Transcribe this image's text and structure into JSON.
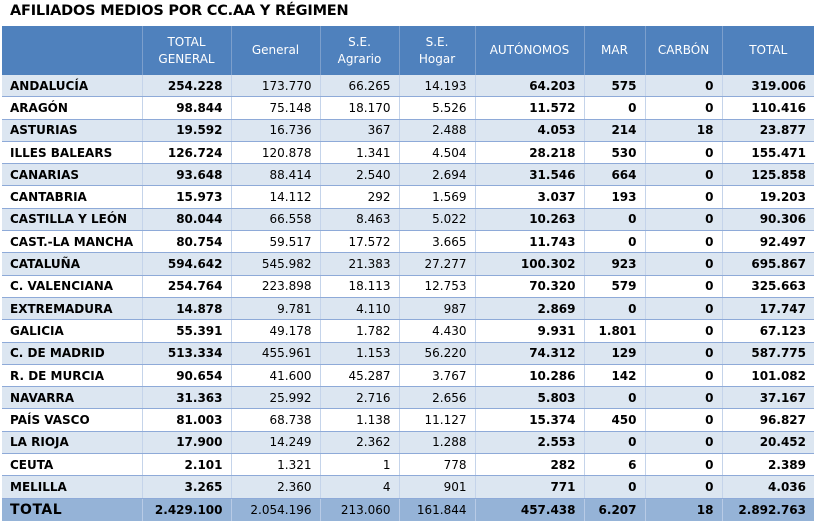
{
  "title": "AFILIADOS MEDIOS POR CC.AA Y RÉGIMEN",
  "headers": [
    [
      "TOTAL",
      "GENERAL"
    ],
    [
      "General"
    ],
    [
      "S.E.",
      "Agrario"
    ],
    [
      "S.E.",
      "Hogar"
    ],
    [
      "AUTÓNOMOS"
    ],
    [
      "MAR"
    ],
    [
      "CARBÓN"
    ],
    [
      "TOTAL"
    ]
  ],
  "rows": [
    {
      "name": "ANDALUCÍA",
      "cells": [
        "254.228",
        "173.770",
        "66.265",
        "14.193",
        "64.203",
        "575",
        "0",
        "319.006"
      ]
    },
    {
      "name": "ARAGÓN",
      "cells": [
        "98.844",
        "75.148",
        "18.170",
        "5.526",
        "11.572",
        "0",
        "0",
        "110.416"
      ]
    },
    {
      "name": "ASTURIAS",
      "cells": [
        "19.592",
        "16.736",
        "367",
        "2.488",
        "4.053",
        "214",
        "18",
        "23.877"
      ]
    },
    {
      "name": "ILLES BALEARS",
      "cells": [
        "126.724",
        "120.878",
        "1.341",
        "4.504",
        "28.218",
        "530",
        "0",
        "155.471"
      ]
    },
    {
      "name": "CANARIAS",
      "cells": [
        "93.648",
        "88.414",
        "2.540",
        "2.694",
        "31.546",
        "664",
        "0",
        "125.858"
      ]
    },
    {
      "name": "CANTABRIA",
      "cells": [
        "15.973",
        "14.112",
        "292",
        "1.569",
        "3.037",
        "193",
        "0",
        "19.203"
      ]
    },
    {
      "name": "CASTILLA Y LEÓN",
      "cells": [
        "80.044",
        "66.558",
        "8.463",
        "5.022",
        "10.263",
        "0",
        "0",
        "90.306"
      ]
    },
    {
      "name": "CAST.-LA MANCHA",
      "cells": [
        "80.754",
        "59.517",
        "17.572",
        "3.665",
        "11.743",
        "0",
        "0",
        "92.497"
      ]
    },
    {
      "name": "CATALUÑA",
      "cells": [
        "594.642",
        "545.982",
        "21.383",
        "27.277",
        "100.302",
        "923",
        "0",
        "695.867"
      ]
    },
    {
      "name": "C. VALENCIANA",
      "cells": [
        "254.764",
        "223.898",
        "18.113",
        "12.753",
        "70.320",
        "579",
        "0",
        "325.663"
      ]
    },
    {
      "name": "EXTREMADURA",
      "cells": [
        "14.878",
        "9.781",
        "4.110",
        "987",
        "2.869",
        "0",
        "0",
        "17.747"
      ]
    },
    {
      "name": "GALICIA",
      "cells": [
        "55.391",
        "49.178",
        "1.782",
        "4.430",
        "9.931",
        "1.801",
        "0",
        "67.123"
      ]
    },
    {
      "name": "C. DE MADRID",
      "cells": [
        "513.334",
        "455.961",
        "1.153",
        "56.220",
        "74.312",
        "129",
        "0",
        "587.775"
      ]
    },
    {
      "name": "R. DE MURCIA",
      "cells": [
        "90.654",
        "41.600",
        "45.287",
        "3.767",
        "10.286",
        "142",
        "0",
        "101.082"
      ]
    },
    {
      "name": "NAVARRA",
      "cells": [
        "31.363",
        "25.992",
        "2.716",
        "2.656",
        "5.803",
        "0",
        "0",
        "37.167"
      ]
    },
    {
      "name": "PAÍS VASCO",
      "cells": [
        "81.003",
        "68.738",
        "1.138",
        "11.127",
        "15.374",
        "450",
        "0",
        "96.827"
      ]
    },
    {
      "name": "LA RIOJA",
      "cells": [
        "17.900",
        "14.249",
        "2.362",
        "1.288",
        "2.553",
        "0",
        "0",
        "20.452"
      ]
    },
    {
      "name": "CEUTA",
      "cells": [
        "2.101",
        "1.321",
        "1",
        "778",
        "282",
        "6",
        "0",
        "2.389"
      ]
    },
    {
      "name": "MELILLA",
      "cells": [
        "3.265",
        "2.360",
        "4",
        "901",
        "771",
        "0",
        "0",
        "4.036"
      ]
    }
  ],
  "total": {
    "name": "TOTAL",
    "cells": [
      "2.429.100",
      "2.054.196",
      "213.060",
      "161.844",
      "457.438",
      "6.207",
      "18",
      "2.892.763"
    ]
  }
}
